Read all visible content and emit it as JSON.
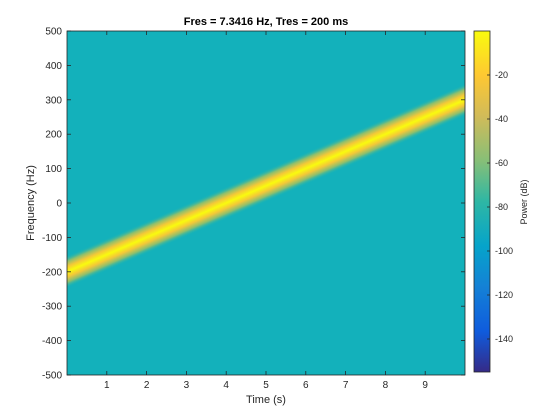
{
  "chart_data": {
    "type": "heatmap",
    "title": "Fres = 7.3416 Hz, Tres = 200 ms",
    "xlabel": "Time (s)",
    "ylabel": "Frequency (Hz)",
    "xlim": [
      0,
      10
    ],
    "ylim": [
      -500,
      500
    ],
    "x_ticks": [
      "1",
      "2",
      "3",
      "4",
      "5",
      "6",
      "7",
      "8",
      "9"
    ],
    "y_ticks": [
      "500",
      "400",
      "300",
      "200",
      "100",
      "0",
      "-100",
      "-200",
      "-300",
      "-400",
      "-500"
    ],
    "colorbar": {
      "label": "Power (dB)",
      "range": [
        -155,
        0
      ],
      "ticks": [
        "-20",
        "-40",
        "-60",
        "-80",
        "-100",
        "-120",
        "-140"
      ]
    },
    "series": [
      {
        "x": [
          0,
          10
        ],
        "y": [
          -200,
          300
        ],
        "peak_power_db": 0
      }
    ],
    "background_power_db": -85,
    "colormap": "parula",
    "grid": false
  }
}
